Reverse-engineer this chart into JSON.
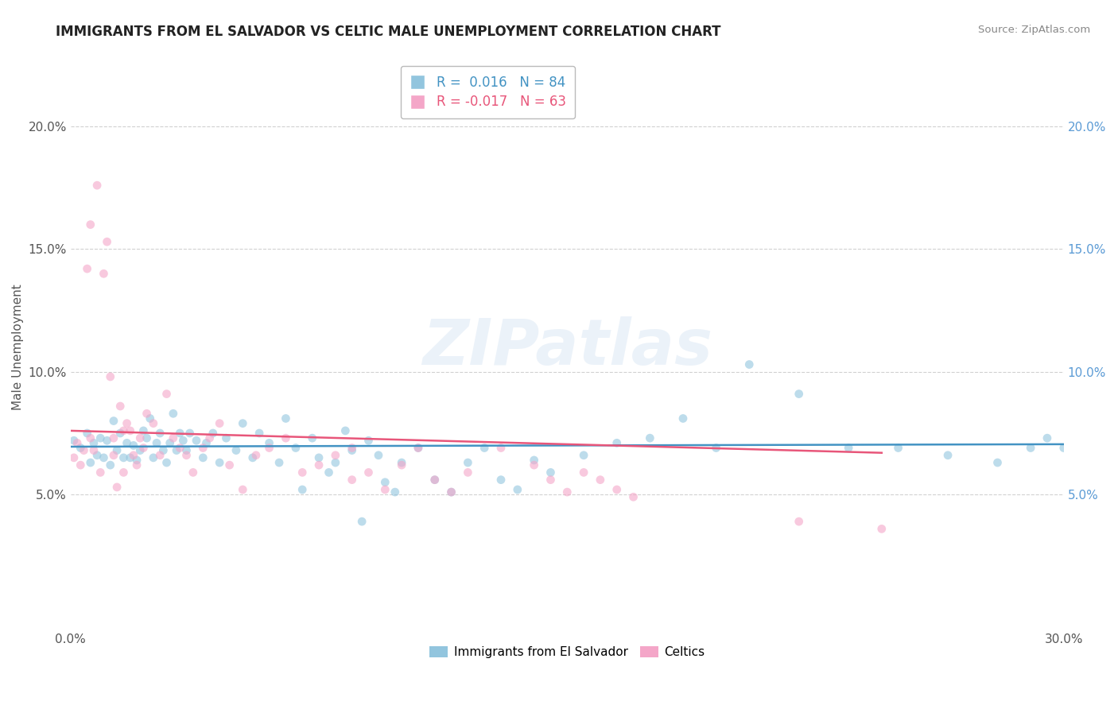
{
  "title": "IMMIGRANTS FROM EL SALVADOR VS CELTIC MALE UNEMPLOYMENT CORRELATION CHART",
  "source": "Source: ZipAtlas.com",
  "ylabel": "Male Unemployment",
  "xlim": [
    0.0,
    0.3
  ],
  "ylim": [
    -0.005,
    0.225
  ],
  "yticks": [
    0.05,
    0.1,
    0.15,
    0.2
  ],
  "yticklabels_left": [
    "5.0%",
    "10.0%",
    "15.0%",
    "20.0%"
  ],
  "yticklabels_right": [
    "5.0%",
    "10.0%",
    "15.0%",
    "20.0%"
  ],
  "legend_blue_label": "Immigrants from El Salvador",
  "legend_pink_label": "Celtics",
  "blue_color": "#92c5de",
  "pink_color": "#f4a6c8",
  "blue_line_color": "#4393c3",
  "pink_line_color": "#e8567a",
  "watermark": "ZIPatlas",
  "background_color": "#ffffff",
  "blue_scatter_x": [
    0.001,
    0.003,
    0.005,
    0.006,
    0.007,
    0.008,
    0.009,
    0.01,
    0.011,
    0.012,
    0.013,
    0.014,
    0.015,
    0.016,
    0.017,
    0.018,
    0.019,
    0.02,
    0.021,
    0.022,
    0.023,
    0.024,
    0.025,
    0.026,
    0.027,
    0.028,
    0.029,
    0.03,
    0.031,
    0.032,
    0.033,
    0.034,
    0.035,
    0.036,
    0.038,
    0.04,
    0.041,
    0.043,
    0.045,
    0.047,
    0.05,
    0.052,
    0.055,
    0.057,
    0.06,
    0.063,
    0.065,
    0.068,
    0.07,
    0.073,
    0.075,
    0.078,
    0.08,
    0.083,
    0.085,
    0.088,
    0.09,
    0.093,
    0.095,
    0.098,
    0.1,
    0.105,
    0.11,
    0.115,
    0.12,
    0.125,
    0.13,
    0.135,
    0.14,
    0.145,
    0.155,
    0.165,
    0.175,
    0.185,
    0.195,
    0.205,
    0.22,
    0.235,
    0.25,
    0.265,
    0.28,
    0.29,
    0.295,
    0.3
  ],
  "blue_scatter_y": [
    0.072,
    0.069,
    0.075,
    0.063,
    0.071,
    0.066,
    0.073,
    0.065,
    0.072,
    0.062,
    0.08,
    0.068,
    0.075,
    0.065,
    0.071,
    0.065,
    0.07,
    0.064,
    0.068,
    0.076,
    0.073,
    0.081,
    0.065,
    0.071,
    0.075,
    0.068,
    0.063,
    0.071,
    0.083,
    0.068,
    0.075,
    0.072,
    0.068,
    0.075,
    0.072,
    0.065,
    0.071,
    0.075,
    0.063,
    0.073,
    0.068,
    0.079,
    0.065,
    0.075,
    0.071,
    0.063,
    0.081,
    0.069,
    0.052,
    0.073,
    0.065,
    0.059,
    0.063,
    0.076,
    0.068,
    0.039,
    0.072,
    0.066,
    0.055,
    0.051,
    0.063,
    0.069,
    0.056,
    0.051,
    0.063,
    0.069,
    0.056,
    0.052,
    0.064,
    0.059,
    0.066,
    0.071,
    0.073,
    0.081,
    0.069,
    0.103,
    0.091,
    0.069,
    0.069,
    0.066,
    0.063,
    0.069,
    0.073,
    0.069
  ],
  "pink_scatter_x": [
    0.001,
    0.002,
    0.003,
    0.004,
    0.005,
    0.006,
    0.006,
    0.007,
    0.008,
    0.009,
    0.01,
    0.011,
    0.012,
    0.013,
    0.013,
    0.014,
    0.015,
    0.016,
    0.016,
    0.017,
    0.018,
    0.019,
    0.02,
    0.021,
    0.022,
    0.023,
    0.025,
    0.027,
    0.029,
    0.031,
    0.033,
    0.035,
    0.037,
    0.04,
    0.042,
    0.045,
    0.048,
    0.052,
    0.056,
    0.06,
    0.065,
    0.07,
    0.075,
    0.08,
    0.085,
    0.085,
    0.09,
    0.095,
    0.1,
    0.105,
    0.11,
    0.115,
    0.12,
    0.13,
    0.14,
    0.145,
    0.15,
    0.155,
    0.16,
    0.165,
    0.17,
    0.22,
    0.245
  ],
  "pink_scatter_y": [
    0.065,
    0.071,
    0.062,
    0.068,
    0.142,
    0.073,
    0.16,
    0.068,
    0.176,
    0.059,
    0.14,
    0.153,
    0.098,
    0.073,
    0.066,
    0.053,
    0.086,
    0.059,
    0.076,
    0.079,
    0.076,
    0.066,
    0.062,
    0.073,
    0.069,
    0.083,
    0.079,
    0.066,
    0.091,
    0.073,
    0.069,
    0.066,
    0.059,
    0.069,
    0.073,
    0.079,
    0.062,
    0.052,
    0.066,
    0.069,
    0.073,
    0.059,
    0.062,
    0.066,
    0.069,
    0.056,
    0.059,
    0.052,
    0.062,
    0.069,
    0.056,
    0.051,
    0.059,
    0.069,
    0.062,
    0.056,
    0.051,
    0.059,
    0.056,
    0.052,
    0.049,
    0.039,
    0.036
  ],
  "blue_trend_x": [
    0.0,
    0.3
  ],
  "blue_trend_y": [
    0.0695,
    0.0705
  ],
  "pink_trend_x": [
    0.0,
    0.245
  ],
  "pink_trend_y": [
    0.076,
    0.067
  ]
}
